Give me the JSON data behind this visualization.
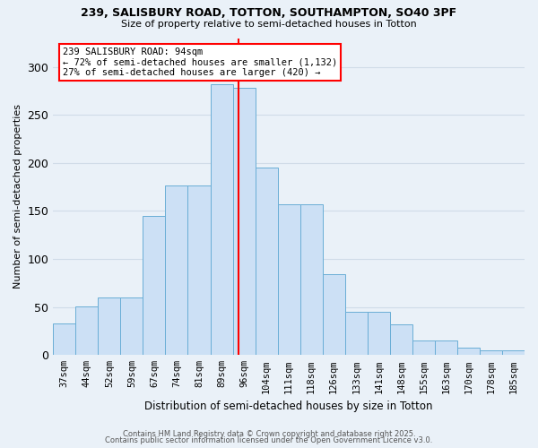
{
  "title1": "239, SALISBURY ROAD, TOTTON, SOUTHAMPTON, SO40 3PF",
  "title2": "Size of property relative to semi-detached houses in Totton",
  "xlabel": "Distribution of semi-detached houses by size in Totton",
  "ylabel": "Number of semi-detached properties",
  "bar_labels": [
    "37sqm",
    "44sqm",
    "52sqm",
    "59sqm",
    "67sqm",
    "74sqm",
    "81sqm",
    "89sqm",
    "96sqm",
    "104sqm",
    "111sqm",
    "118sqm",
    "126sqm",
    "133sqm",
    "141sqm",
    "148sqm",
    "155sqm",
    "163sqm",
    "170sqm",
    "178sqm",
    "185sqm"
  ],
  "bar_values": [
    33,
    51,
    60,
    60,
    145,
    177,
    177,
    282,
    278,
    195,
    157,
    157,
    84,
    45,
    45,
    32,
    15,
    15,
    8,
    5,
    5
  ],
  "bar_color": "#cce0f5",
  "bar_edge_color": "#6aaed6",
  "vline_color": "red",
  "annotation_title": "239 SALISBURY ROAD: 94sqm",
  "annotation_line1": "← 72% of semi-detached houses are smaller (1,132)",
  "annotation_line2": "27% of semi-detached houses are larger (420) →",
  "annotation_box_color": "white",
  "annotation_box_edge": "red",
  "ylim": [
    0,
    330
  ],
  "yticks": [
    0,
    50,
    100,
    150,
    200,
    250,
    300
  ],
  "footer1": "Contains HM Land Registry data © Crown copyright and database right 2025.",
  "footer2": "Contains public sector information licensed under the Open Government Licence v3.0.",
  "bg_color": "#eaf1f8",
  "grid_color": "#d0dce8"
}
